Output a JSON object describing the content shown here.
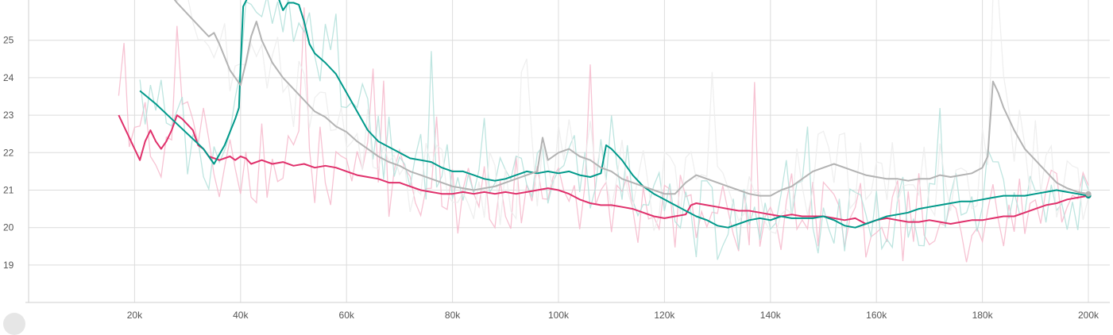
{
  "chart_data": {
    "type": "line",
    "title": "",
    "xlabel": "",
    "ylabel": "",
    "xlim": [
      0,
      200000
    ],
    "ylim": [
      18,
      26
    ],
    "x_ticks": [
      20000,
      40000,
      60000,
      80000,
      100000,
      120000,
      140000,
      160000,
      180000,
      200000
    ],
    "x_tick_labels": [
      "20k",
      "40k",
      "60k",
      "80k",
      "100k",
      "120k",
      "140k",
      "160k",
      "180k",
      "200k"
    ],
    "y_ticks": [
      19,
      20,
      21,
      22,
      23,
      24,
      25
    ],
    "y_tick_labels": [
      "19",
      "20",
      "21",
      "22",
      "23",
      "24",
      "25"
    ],
    "grid": true,
    "legend": "none",
    "series": [
      {
        "color": "#e0306b",
        "raw_color": "#f6b8cb",
        "x": [
          17000,
          21000,
          22000,
          23000,
          24000,
          25000,
          26000,
          27000,
          28000,
          29000,
          31000,
          32000,
          33000,
          34000,
          36000,
          38000,
          39000,
          40000,
          41000,
          42000,
          44000,
          46000,
          48000,
          50000,
          52000,
          54000,
          56000,
          58000,
          60000,
          62000,
          64000,
          66000,
          68000,
          70000,
          72000,
          74000,
          76000,
          78000,
          80000,
          82000,
          84000,
          86000,
          88000,
          90000,
          92000,
          94000,
          96000,
          98000,
          100000,
          102000,
          104000,
          106000,
          108000,
          110000,
          112000,
          114000,
          116000,
          118000,
          120000,
          122000,
          124000,
          125000,
          126000,
          128000,
          130000,
          132000,
          134000,
          136000,
          138000,
          140000,
          142000,
          144000,
          146000,
          148000,
          150000,
          152000,
          154000,
          156000,
          158000,
          160000,
          162000,
          164000,
          166000,
          168000,
          170000,
          172000,
          174000,
          176000,
          178000,
          180000,
          182000,
          184000,
          186000,
          188000,
          190000,
          192000,
          194000,
          196000,
          198000,
          200000
        ],
        "y": [
          23.0,
          21.8,
          22.3,
          22.6,
          22.3,
          22.1,
          22.3,
          22.6,
          23.0,
          22.9,
          22.6,
          22.2,
          22.1,
          21.9,
          21.8,
          21.9,
          21.8,
          21.9,
          21.85,
          21.7,
          21.8,
          21.7,
          21.75,
          21.65,
          21.7,
          21.6,
          21.65,
          21.6,
          21.5,
          21.4,
          21.35,
          21.3,
          21.2,
          21.2,
          21.1,
          21.0,
          20.95,
          20.9,
          20.9,
          20.95,
          20.9,
          20.95,
          20.9,
          20.95,
          20.9,
          20.95,
          21.0,
          21.05,
          21.0,
          20.9,
          20.75,
          20.65,
          20.6,
          20.6,
          20.55,
          20.5,
          20.4,
          20.3,
          20.25,
          20.3,
          20.35,
          20.6,
          20.65,
          20.6,
          20.55,
          20.5,
          20.45,
          20.45,
          20.4,
          20.35,
          20.3,
          20.35,
          20.3,
          20.3,
          20.3,
          20.25,
          20.2,
          20.25,
          20.1,
          20.2,
          20.25,
          20.2,
          20.15,
          20.15,
          20.2,
          20.15,
          20.1,
          20.15,
          20.2,
          20.2,
          20.25,
          20.3,
          20.3,
          20.4,
          20.5,
          20.6,
          20.65,
          20.75,
          20.8,
          20.85
        ]
      },
      {
        "color": "#00998a",
        "raw_color": "#b3e0da",
        "x": [
          21000,
          24000,
          27000,
          30000,
          33000,
          35000,
          37000,
          39000,
          39700,
          40000,
          40500,
          41500,
          43000,
          45000,
          47000,
          48000,
          49000,
          50000,
          51000,
          52000,
          53000,
          54000,
          56000,
          58000,
          60000,
          62000,
          64000,
          66000,
          68000,
          70000,
          72000,
          74000,
          76000,
          78000,
          80000,
          82000,
          84000,
          86000,
          88000,
          90000,
          92000,
          94000,
          96000,
          98000,
          100000,
          102000,
          104000,
          106000,
          108000,
          109000,
          110000,
          112000,
          114000,
          116000,
          118000,
          120000,
          122000,
          124000,
          126000,
          128000,
          130000,
          132000,
          134000,
          136000,
          138000,
          140000,
          142000,
          144000,
          146000,
          148000,
          150000,
          152000,
          154000,
          156000,
          158000,
          160000,
          162000,
          164000,
          166000,
          168000,
          170000,
          172000,
          174000,
          176000,
          178000,
          180000,
          182000,
          184000,
          186000,
          188000,
          190000,
          192000,
          194000,
          196000,
          198000,
          200000
        ],
        "y": [
          23.65,
          23.3,
          22.9,
          22.5,
          22.1,
          21.7,
          22.2,
          22.9,
          23.2,
          24.3,
          25.9,
          26.2,
          26.2,
          26.2,
          26.2,
          25.8,
          26.0,
          26.0,
          25.95,
          25.5,
          24.9,
          24.65,
          24.4,
          24.1,
          23.6,
          23.1,
          22.6,
          22.3,
          22.15,
          22.0,
          21.85,
          21.8,
          21.75,
          21.6,
          21.5,
          21.5,
          21.4,
          21.3,
          21.25,
          21.3,
          21.4,
          21.5,
          21.45,
          21.5,
          21.45,
          21.5,
          21.4,
          21.35,
          21.45,
          22.2,
          22.1,
          21.8,
          21.4,
          21.1,
          20.9,
          20.75,
          20.6,
          20.45,
          20.3,
          20.2,
          20.05,
          20.0,
          20.1,
          20.2,
          20.25,
          20.2,
          20.3,
          20.25,
          20.25,
          20.25,
          20.3,
          20.2,
          20.05,
          20.0,
          20.1,
          20.2,
          20.3,
          20.35,
          20.4,
          20.5,
          20.55,
          20.6,
          20.65,
          20.7,
          20.7,
          20.75,
          20.8,
          20.85,
          20.85,
          20.85,
          20.9,
          20.95,
          21.0,
          20.95,
          20.9,
          20.85
        ]
      },
      {
        "color": "#b3b3b3",
        "raw_color": "#ececec",
        "x": [
          27000,
          28000,
          30000,
          32000,
          34000,
          35000,
          36000,
          38000,
          40000,
          41000,
          42000,
          43000,
          44000,
          46000,
          48000,
          50000,
          52000,
          54000,
          56000,
          58000,
          60000,
          62000,
          64000,
          66000,
          68000,
          70000,
          72000,
          74000,
          76000,
          78000,
          80000,
          82000,
          84000,
          86000,
          88000,
          90000,
          92000,
          94000,
          96000,
          97000,
          98000,
          100000,
          102000,
          104000,
          106000,
          108000,
          110000,
          112000,
          114000,
          116000,
          118000,
          120000,
          122000,
          124000,
          126000,
          128000,
          130000,
          132000,
          134000,
          136000,
          138000,
          140000,
          142000,
          144000,
          146000,
          148000,
          150000,
          152000,
          154000,
          156000,
          158000,
          160000,
          162000,
          164000,
          166000,
          168000,
          170000,
          172000,
          174000,
          176000,
          178000,
          180000,
          181000,
          182000,
          183000,
          184000,
          186000,
          188000,
          190000,
          192000,
          194000,
          196000,
          198000,
          200000
        ],
        "y": [
          26.2,
          26.0,
          25.7,
          25.4,
          25.1,
          25.2,
          24.9,
          24.2,
          23.8,
          24.4,
          25.1,
          25.5,
          25.0,
          24.4,
          24.0,
          23.7,
          23.4,
          23.1,
          22.95,
          22.7,
          22.55,
          22.3,
          22.1,
          21.9,
          21.75,
          21.65,
          21.5,
          21.4,
          21.3,
          21.2,
          21.1,
          21.05,
          21.0,
          21.05,
          21.1,
          21.2,
          21.3,
          21.4,
          21.5,
          22.4,
          21.8,
          22.0,
          22.1,
          21.9,
          21.8,
          21.6,
          21.5,
          21.3,
          21.2,
          21.1,
          21.0,
          20.9,
          20.9,
          21.2,
          21.4,
          21.3,
          21.2,
          21.1,
          21.0,
          20.9,
          20.85,
          20.85,
          21.0,
          21.1,
          21.3,
          21.5,
          21.6,
          21.7,
          21.6,
          21.5,
          21.4,
          21.35,
          21.3,
          21.3,
          21.25,
          21.3,
          21.3,
          21.4,
          21.35,
          21.4,
          21.45,
          21.6,
          21.9,
          23.9,
          23.6,
          23.2,
          22.6,
          22.1,
          21.8,
          21.5,
          21.2,
          21.05,
          20.95,
          20.9
        ]
      }
    ]
  }
}
